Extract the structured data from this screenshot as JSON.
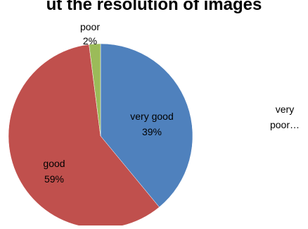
{
  "chart_data": {
    "type": "pie",
    "title": "ut the resolution of images",
    "categories": [
      "very good",
      "good",
      "poor",
      "very poor…"
    ],
    "values": [
      39,
      59,
      2,
      0
    ],
    "labels": [
      {
        "name": "very good",
        "value": "39%"
      },
      {
        "name": "good",
        "value": "59%"
      },
      {
        "name": "poor",
        "value": "2%"
      },
      {
        "name": "very poor…",
        "value": ""
      }
    ],
    "colors": [
      "#4f81bd",
      "#c0504d",
      "#9bbb59",
      "#8064a2"
    ],
    "legend": "none"
  }
}
